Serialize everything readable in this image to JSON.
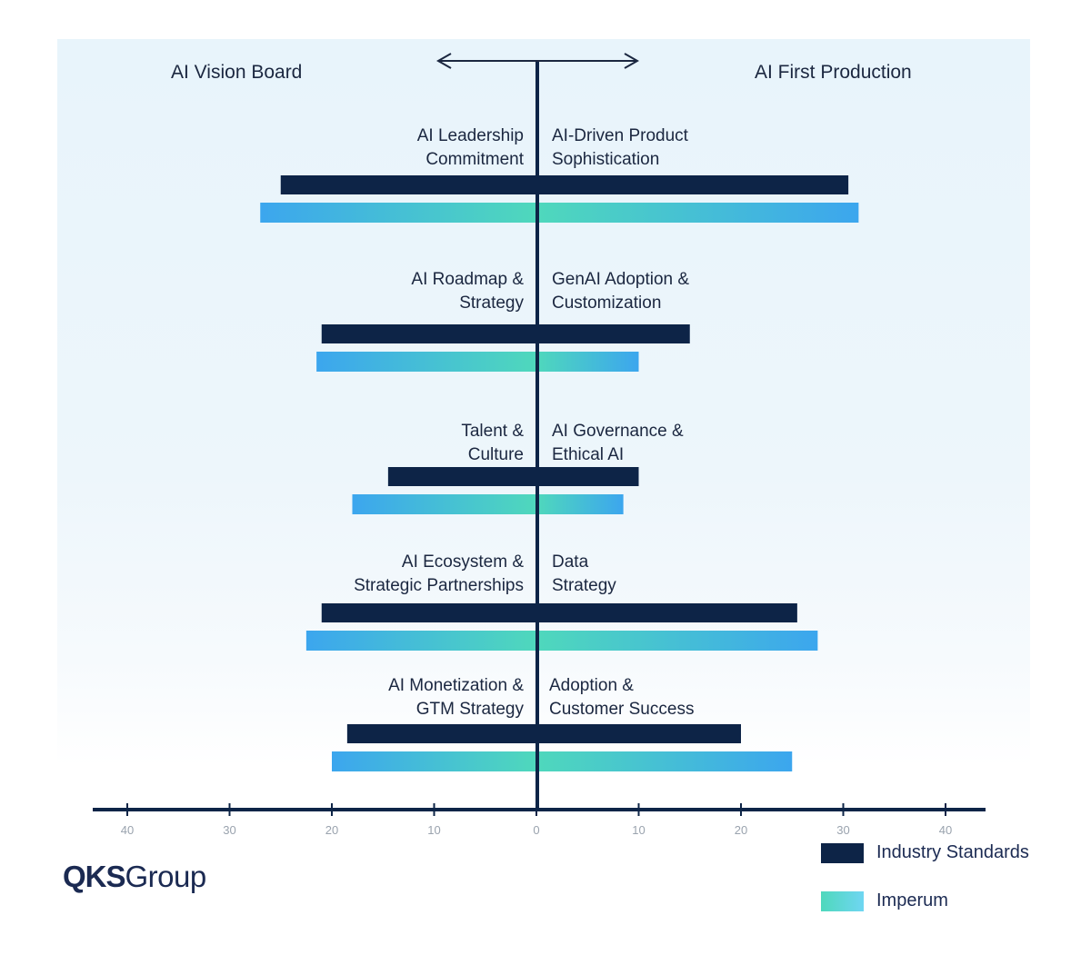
{
  "chart_data": {
    "type": "bar",
    "orientation": "horizontal-diverging",
    "left_title": "AI Vision Board",
    "right_title": "AI First Production",
    "x_ticks": [
      -40,
      -30,
      -20,
      -10,
      0,
      10,
      20,
      30,
      40
    ],
    "x_tick_labels": [
      "40",
      "30",
      "20",
      "10",
      "0",
      "10",
      "20",
      "30",
      "40"
    ],
    "xlim": [
      -44,
      44
    ],
    "categories": [
      {
        "left": [
          "AI Leadership",
          "Commitment"
        ],
        "right": [
          "AI-Driven Product",
          "Sophistication"
        ]
      },
      {
        "left": [
          "AI Roadmap &",
          "Strategy"
        ],
        "right": [
          "GenAI Adoption &",
          "Customization"
        ]
      },
      {
        "left": [
          "Talent &",
          "Culture"
        ],
        "right": [
          "AI Governance &",
          "Ethical AI"
        ]
      },
      {
        "left": [
          "AI Ecosystem &",
          "Strategic Partnerships"
        ],
        "right": [
          "Data",
          "Strategy"
        ]
      },
      {
        "left": [
          "AI Monetization &",
          "GTM Strategy"
        ],
        "right": [
          "Adoption &",
          "Customer Success"
        ]
      }
    ],
    "series": [
      {
        "name": "Industry Standards",
        "color": "#0d2447",
        "left_values": [
          25,
          21,
          14.5,
          21,
          18.5
        ],
        "right_values": [
          30.5,
          15,
          10,
          25.5,
          20
        ]
      },
      {
        "name": "Imperum",
        "color_start": "#3ca6ee",
        "color_end": "#4fd8bc",
        "left_values": [
          27,
          21.5,
          18,
          22.5,
          20
        ],
        "right_values": [
          31.5,
          10,
          8.5,
          27.5,
          25
        ]
      }
    ]
  },
  "legend": {
    "industry_label": "Industry Standards",
    "imperum_label": "Imperum"
  },
  "logo": {
    "bold_text": "QKS",
    "light_text": "Group"
  }
}
